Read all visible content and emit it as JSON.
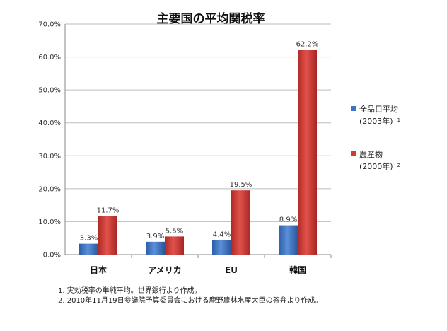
{
  "chart_data": {
    "type": "bar",
    "title": "主要国の平均関税率",
    "categories": [
      "日本",
      "アメリカ",
      "EU",
      "韓国"
    ],
    "series": [
      {
        "name": "全品目平均",
        "name_line2": "(2003年)",
        "footnote_mark": "1",
        "color": "#3f74c2",
        "values": [
          3.3,
          3.9,
          4.4,
          8.9
        ],
        "labels": [
          "3.3%",
          "3.9%",
          "4.4%",
          "8.9%"
        ]
      },
      {
        "name": "農産物",
        "name_line2": "(2000年)",
        "footnote_mark": "2",
        "color": "#cc3b35",
        "values": [
          11.7,
          5.5,
          19.5,
          62.2
        ],
        "labels": [
          "11.7%",
          "5.5%",
          "19.5%",
          "62.2%"
        ]
      }
    ],
    "ylim": [
      0,
      70
    ],
    "yticks": [
      0,
      10,
      20,
      30,
      40,
      50,
      60,
      70
    ],
    "ytick_labels": [
      "0.0%",
      "10.0%",
      "20.0%",
      "30.0%",
      "40.0%",
      "50.0%",
      "60.0%",
      "70.0%"
    ],
    "grid": true,
    "legend_position": "right"
  },
  "notes": [
    "1.  実効税率の単純平均。世界銀行より作成。",
    "2.  2010年11月19日参議院予算委員会における鹿野農林水産大臣の答弁より作成。"
  ]
}
